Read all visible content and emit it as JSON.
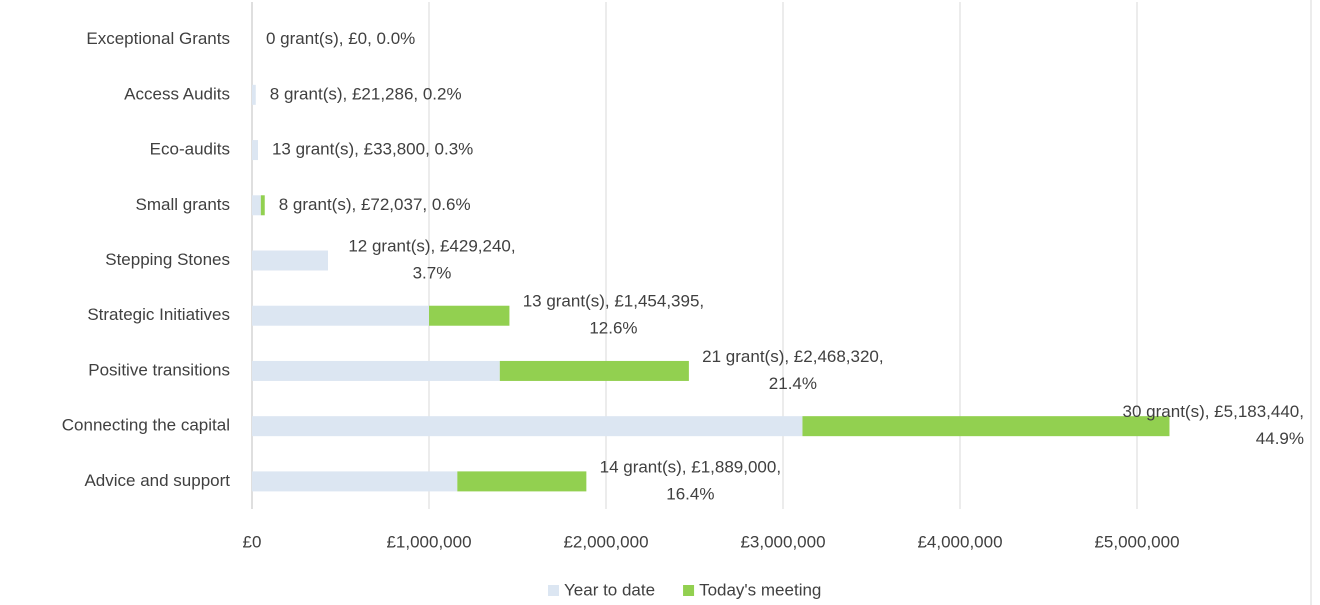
{
  "chart_data": {
    "type": "stacked-barh",
    "categories": [
      "Exceptional Grants",
      "Access Audits",
      "Eco-audits",
      "Small grants",
      "Stepping Stones",
      "Strategic Initiatives",
      "Positive transitions",
      "Connecting the capital",
      "Advice and support"
    ],
    "series": [
      {
        "name": "Year to date",
        "color": "#dce6f2",
        "values": [
          0,
          21286,
          33800,
          50000,
          429240,
          1000000,
          1400000,
          3110000,
          1160000
        ]
      },
      {
        "name": "Today's meeting",
        "color": "#92d050",
        "values": [
          0,
          0,
          0,
          22037,
          0,
          454395,
          1068320,
          2073440,
          729000
        ]
      }
    ],
    "data_labels": [
      [
        "0 grant(s), £0, 0.0%"
      ],
      [
        "8 grant(s), £21,286, 0.2%"
      ],
      [
        "13 grant(s), £33,800, 0.3%"
      ],
      [
        "8 grant(s), £72,037, 0.6%"
      ],
      [
        "12 grant(s), £429,240,",
        "3.7%"
      ],
      [
        "13 grant(s), £1,454,395,",
        "12.6%"
      ],
      [
        "21 grant(s), £2,468,320,",
        "21.4%"
      ],
      [
        "30 grant(s), £5,183,440,",
        "44.9%"
      ],
      [
        "14 grant(s), £1,889,000,",
        "16.4%"
      ]
    ],
    "xlim": [
      0,
      6000000
    ],
    "xticks": [
      {
        "value": 0,
        "label": "£0"
      },
      {
        "value": 1000000,
        "label": "£1,000,000"
      },
      {
        "value": 2000000,
        "label": "£2,000,000"
      },
      {
        "value": 3000000,
        "label": "£3,000,000"
      },
      {
        "value": 4000000,
        "label": "£4,000,000"
      },
      {
        "value": 5000000,
        "label": "£5,000,000"
      }
    ],
    "grid": true,
    "legend": "bottom"
  }
}
